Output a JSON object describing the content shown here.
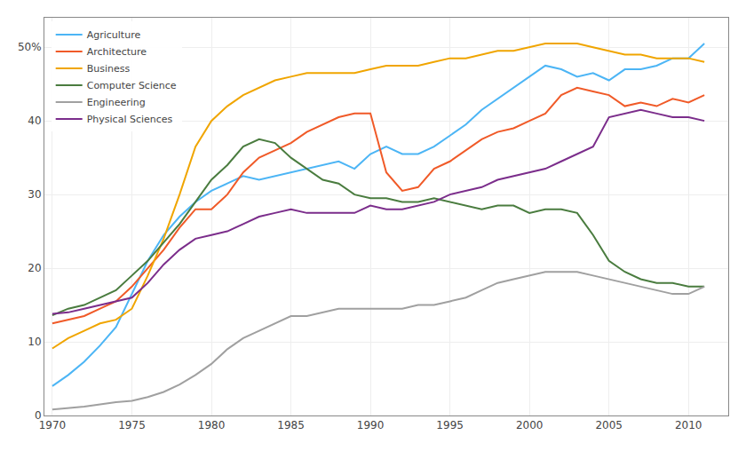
{
  "chart_data": {
    "type": "line",
    "x": [
      1970,
      1971,
      1972,
      1973,
      1974,
      1975,
      1976,
      1977,
      1978,
      1979,
      1980,
      1981,
      1982,
      1983,
      1984,
      1985,
      1986,
      1987,
      1988,
      1989,
      1990,
      1991,
      1992,
      1993,
      1994,
      1995,
      1996,
      1997,
      1998,
      1999,
      2000,
      2001,
      2002,
      2003,
      2004,
      2005,
      2006,
      2007,
      2008,
      2009,
      2010,
      2011
    ],
    "series": [
      {
        "name": "Agriculture",
        "color": "#4cb5f5",
        "values": [
          4.0,
          5.5,
          7.3,
          9.5,
          12.0,
          16.5,
          21.0,
          24.5,
          27.0,
          29.0,
          30.5,
          31.5,
          32.5,
          32.0,
          32.5,
          33.0,
          33.5,
          34.0,
          34.5,
          33.5,
          35.5,
          36.5,
          35.5,
          35.5,
          36.5,
          38.0,
          39.5,
          41.5,
          43.0,
          44.5,
          46.0,
          47.5,
          47.0,
          46.0,
          46.5,
          45.5,
          47.0,
          47.0,
          47.5,
          48.5,
          48.5,
          50.5
        ]
      },
      {
        "name": "Architecture",
        "color": "#f05a28",
        "values": [
          12.5,
          13.0,
          13.5,
          14.5,
          15.5,
          17.5,
          20.0,
          22.5,
          25.5,
          28.0,
          28.0,
          30.0,
          33.0,
          35.0,
          36.0,
          37.0,
          38.5,
          39.5,
          40.5,
          41.0,
          41.0,
          33.0,
          30.5,
          31.0,
          33.5,
          34.5,
          36.0,
          37.5,
          38.5,
          39.0,
          40.0,
          41.0,
          43.5,
          44.5,
          44.0,
          43.5,
          42.0,
          42.5,
          42.0,
          43.0,
          42.5,
          43.5
        ]
      },
      {
        "name": "Business",
        "color": "#f0a500",
        "values": [
          9.1,
          10.5,
          11.5,
          12.5,
          13.0,
          14.5,
          19.0,
          24.0,
          30.0,
          36.5,
          40.0,
          42.0,
          43.5,
          44.5,
          45.5,
          46.0,
          46.5,
          46.5,
          46.5,
          46.5,
          47.0,
          47.5,
          47.5,
          47.5,
          48.0,
          48.5,
          48.5,
          49.0,
          49.5,
          49.5,
          50.0,
          50.5,
          50.5,
          50.5,
          50.0,
          49.5,
          49.0,
          49.0,
          48.5,
          48.5,
          48.5,
          48.0
        ]
      },
      {
        "name": "Computer Science",
        "color": "#4a7c3f",
        "values": [
          13.6,
          14.5,
          15.0,
          16.0,
          17.0,
          19.0,
          21.0,
          23.5,
          26.0,
          29.0,
          32.0,
          34.0,
          36.5,
          37.5,
          37.0,
          35.0,
          33.5,
          32.0,
          31.5,
          30.0,
          29.5,
          29.5,
          29.0,
          29.0,
          29.5,
          29.0,
          28.5,
          28.0,
          28.5,
          28.5,
          27.5,
          28.0,
          28.0,
          27.5,
          24.5,
          21.0,
          19.5,
          18.5,
          18.0,
          18.0,
          17.5,
          17.5
        ]
      },
      {
        "name": "Engineering",
        "color": "#a0a0a0",
        "values": [
          0.8,
          1.0,
          1.2,
          1.5,
          1.8,
          2.0,
          2.5,
          3.2,
          4.2,
          5.5,
          7.0,
          9.0,
          10.5,
          11.5,
          12.5,
          13.5,
          13.5,
          14.0,
          14.5,
          14.5,
          14.5,
          14.5,
          14.5,
          15.0,
          15.0,
          15.5,
          16.0,
          17.0,
          18.0,
          18.5,
          19.0,
          19.5,
          19.5,
          19.5,
          19.0,
          18.5,
          18.0,
          17.5,
          17.0,
          16.5,
          16.5,
          17.5
        ]
      },
      {
        "name": "Physical Sciences",
        "color": "#7b2d8b",
        "values": [
          13.8,
          14.0,
          14.5,
          15.0,
          15.5,
          16.0,
          18.0,
          20.5,
          22.5,
          24.0,
          24.5,
          25.0,
          26.0,
          27.0,
          27.5,
          28.0,
          27.5,
          27.5,
          27.5,
          27.5,
          28.5,
          28.0,
          28.0,
          28.5,
          29.0,
          30.0,
          30.5,
          31.0,
          32.0,
          32.5,
          33.0,
          33.5,
          34.5,
          35.5,
          36.5,
          40.5,
          41.0,
          41.5,
          41.0,
          40.5,
          40.5,
          40.0
        ]
      }
    ],
    "xlim": [
      1969.5,
      2012.5
    ],
    "xticks": [
      1970,
      1975,
      1980,
      1985,
      1990,
      1995,
      2000,
      2005,
      2010
    ],
    "ylim": [
      0,
      54
    ],
    "yticks": [
      0,
      10,
      20,
      30,
      40,
      {
        "value": 50,
        "label": "50%"
      }
    ],
    "grid": true,
    "legend": "upper left"
  }
}
